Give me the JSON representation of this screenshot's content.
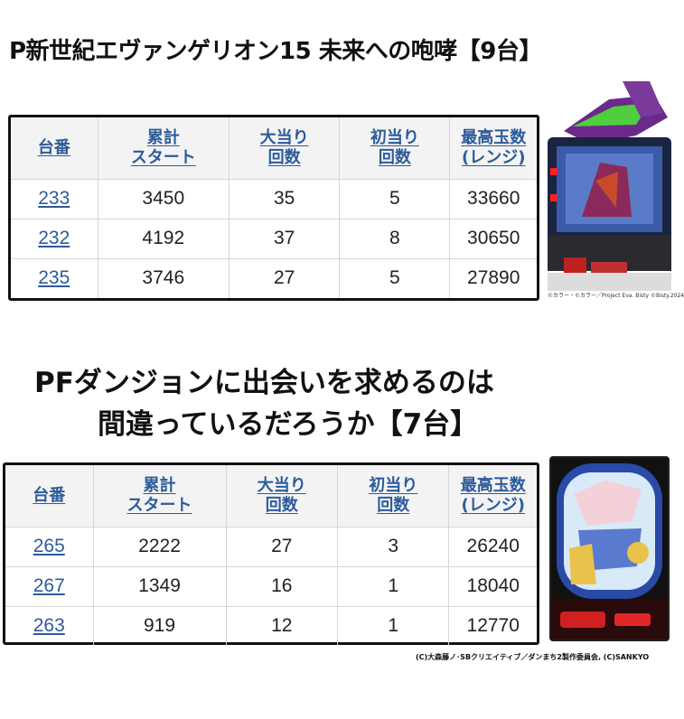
{
  "section1": {
    "title": "P新世紀エヴァンゲリオン15 未来への咆哮【9台】",
    "headers": [
      "台番",
      "累計\nスタート",
      "大当り\n回数",
      "初当り\n回数",
      "最高玉数\n(レンジ)"
    ],
    "rows": [
      [
        "233",
        "3450",
        "35",
        "5",
        "33660"
      ],
      [
        "232",
        "4192",
        "37",
        "8",
        "30650"
      ],
      [
        "235",
        "3746",
        "27",
        "5",
        "27890"
      ]
    ],
    "image_credit": "©カラー・©カラー／Project Eva. Bisty ©Bisty.2024"
  },
  "section2": {
    "title_line1": "PFダンジョンに出会いを求めるのは",
    "title_line2": "間違っているだろうか【7台】",
    "headers": [
      "台番",
      "累計\nスタート",
      "大当り\n回数",
      "初当り\n回数",
      "最高玉数\n(レンジ)"
    ],
    "rows": [
      [
        "265",
        "2222",
        "27",
        "3",
        "26240"
      ],
      [
        "267",
        "1349",
        "16",
        "1",
        "18040"
      ],
      [
        "263",
        "919",
        "12",
        "1",
        "12770"
      ]
    ],
    "image_credit": "(C)大森藤ノ･SBクリエイティブ／ダンまち2製作委員会, (C)SANKYO"
  }
}
